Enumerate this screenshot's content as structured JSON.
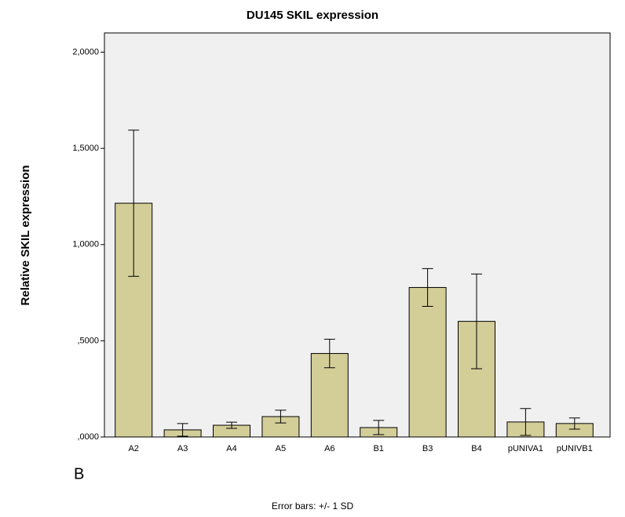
{
  "chart_data": {
    "type": "bar",
    "title": "DU145 SKIL expression",
    "y_label": "Relative SKIL expression",
    "categories": [
      "A2",
      "A3",
      "A4",
      "A5",
      "A6",
      "B1",
      "B3",
      "B4",
      "pUNIVA1",
      "pUNIVB1"
    ],
    "values": [
      1.215,
      0.037,
      0.061,
      0.106,
      0.434,
      0.049,
      0.777,
      0.601,
      0.078,
      0.07
    ],
    "errors": [
      0.38,
      0.033,
      0.016,
      0.033,
      0.074,
      0.037,
      0.098,
      0.246,
      0.07,
      0.029
    ],
    "color": "#d3cd98",
    "ylim": [
      0,
      2.1
    ],
    "yticks": [
      {
        "value": 0,
        "label": ",0000"
      },
      {
        "value": 0.5,
        "label": ",5000"
      },
      {
        "value": 1,
        "label": "1,0000"
      },
      {
        "value": 1.5,
        "label": "1,5000"
      },
      {
        "value": 2,
        "label": "2,0000"
      }
    ],
    "annotation": "B",
    "footnote": "Error bars: +/- 1 SD"
  }
}
